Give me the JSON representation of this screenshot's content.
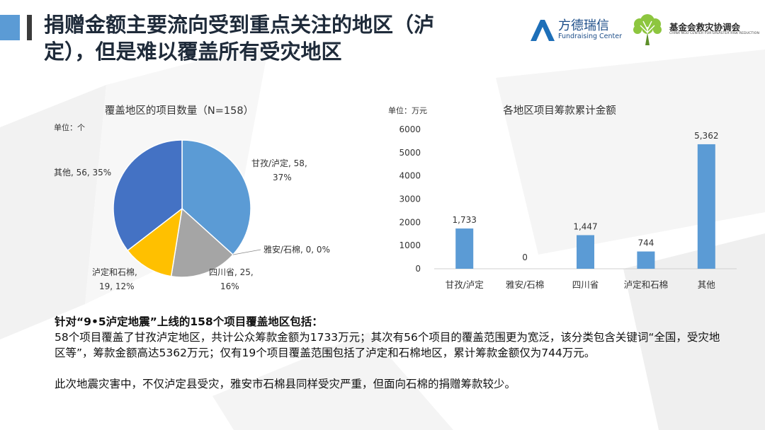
{
  "title": "捐赠金额主要流向受到重点关注的地区（泸定），但是难以覆盖所有受灾地区",
  "logos": {
    "fangde": {
      "name": "方德瑞信",
      "sub": "Fundraising Center"
    },
    "jijinhui": {
      "name": "基金会救灾协调会",
      "sub": "CHINA NGO CENTER FOR DISASTER RISK REDUCTION"
    }
  },
  "colors": {
    "accent": "#5b9bd5",
    "title": "#1f2b3a",
    "bar": "#5b9bd5"
  },
  "chart_data": [
    {
      "type": "pie",
      "title": "覆盖地区的项目数量（N=158）",
      "unit_label": "单位：个",
      "slices": [
        {
          "name": "甘孜/泸定",
          "value": 58,
          "percent": "37%",
          "color": "#5b9bd5",
          "label_line1": "甘孜/泸定, 58,",
          "label_line2": "37%"
        },
        {
          "name": "雅安/石棉",
          "value": 0,
          "percent": "0%",
          "color": "#ed7d31",
          "label_line1": "雅安/石棉, 0, 0%",
          "label_line2": ""
        },
        {
          "name": "四川省",
          "value": 25,
          "percent": "16%",
          "color": "#a5a5a5",
          "label_line1": "四川省, 25,",
          "label_line2": "16%"
        },
        {
          "name": "泸定和石棉",
          "value": 19,
          "percent": "12%",
          "color": "#ffc000",
          "label_line1": "泸定和石棉,",
          "label_line2": "19, 12%"
        },
        {
          "name": "其他",
          "value": 56,
          "percent": "35%",
          "color": "#4472c4",
          "label_line1": "其他, 56, 35%",
          "label_line2": ""
        }
      ]
    },
    {
      "type": "bar",
      "title": "各地区项目筹款累计金额",
      "unit_label": "单位：万元",
      "categories": [
        "甘孜/泸定",
        "雅安/石棉",
        "四川省",
        "泸定和石棉",
        "其他"
      ],
      "values": [
        1733,
        0,
        1447,
        744,
        5362
      ],
      "value_labels": [
        "1,733",
        "0",
        "1,447",
        "744",
        "5,362"
      ],
      "ylim": [
        0,
        6000
      ],
      "yticks": [
        "0",
        "1000",
        "2000",
        "3000",
        "4000",
        "5000",
        "6000"
      ],
      "grid": false
    }
  ],
  "body": {
    "lead": "针对“9•5泸定地震”上线的158个项目覆盖地区包括：",
    "para1": "58个项目覆盖了甘孜泸定地区，共计公众筹款金额为1733万元；其次有56个项目的覆盖范围更为宽泛，该分类包含关键词“全国，受灾地区等”，筹款金额高达5362万元；仅有19个项目覆盖范围包括了泸定和石棉地区，累计筹款金额仅为744万元。",
    "para2": "此次地震灾害中，不仅泸定县受灾，雅安市石棉县同样受灾严重，但面向石棉的捐赠筹款较少。"
  }
}
